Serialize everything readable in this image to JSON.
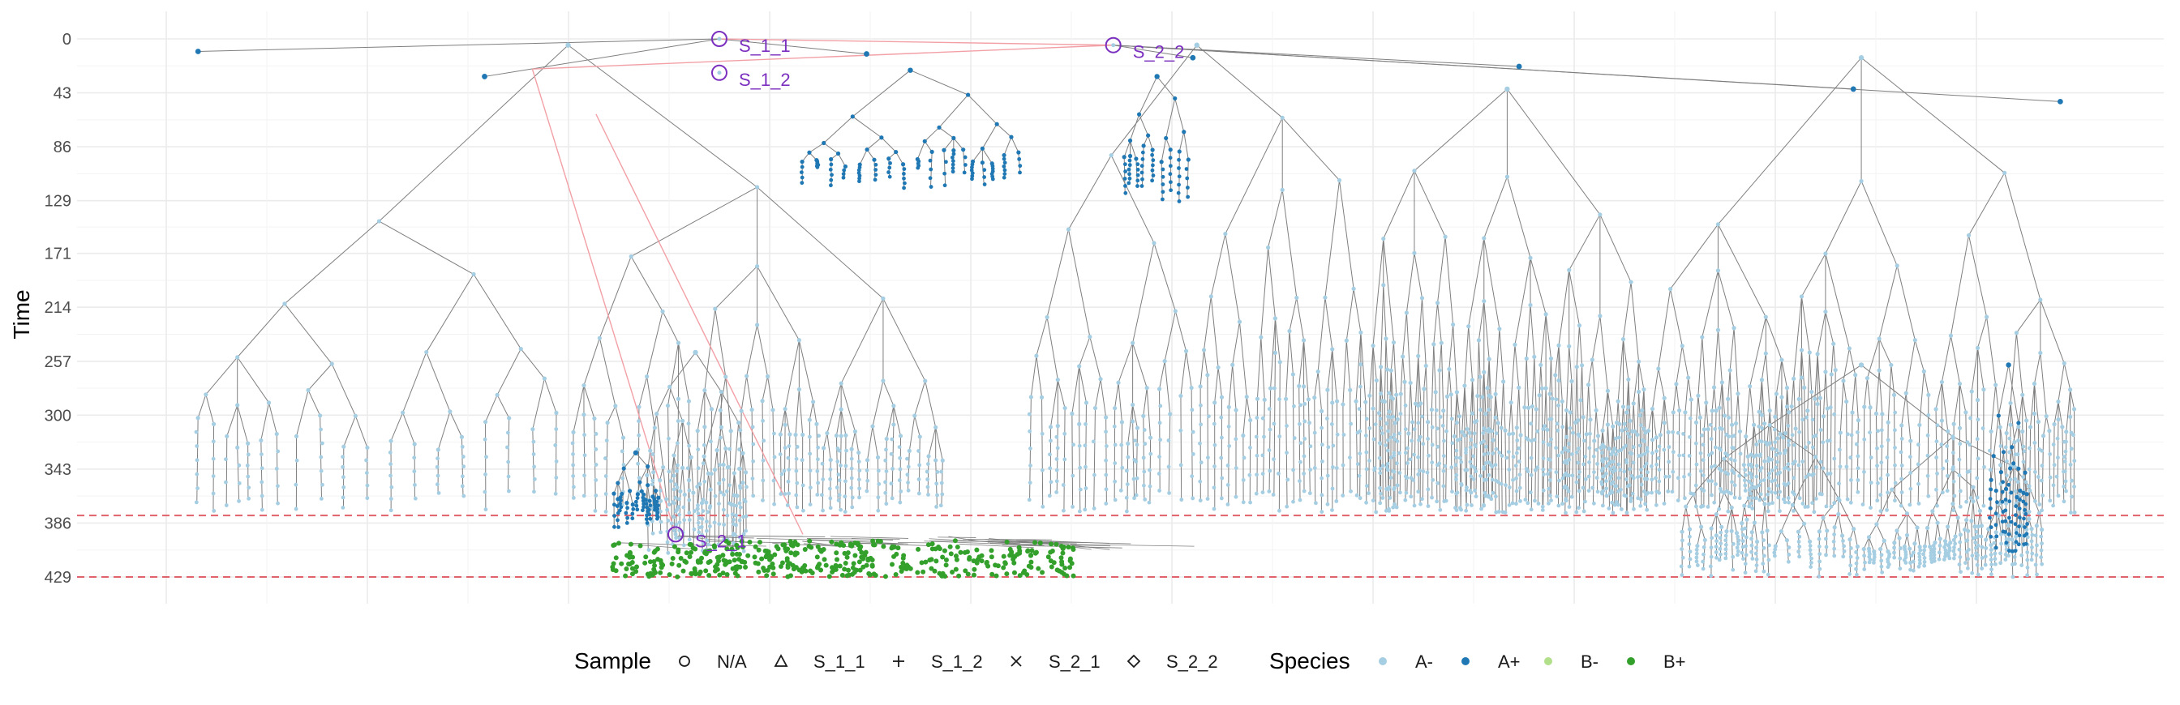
{
  "chart_data": {
    "type": "scatter",
    "subtype": "phylogenetic-tree",
    "title": "",
    "xlabel": "",
    "ylabel": "Time",
    "y_reversed": true,
    "ylim": [
      0,
      429
    ],
    "yticks": [
      0,
      43,
      86,
      129,
      171,
      214,
      257,
      300,
      343,
      386,
      429
    ],
    "xlim": [
      0,
      2400
    ],
    "x_tick_labels_shown": false,
    "grid": true,
    "legend_position": "bottom",
    "reference_lines": [
      {
        "axis": "y",
        "value": 380,
        "style": "dashed",
        "color": "#e0626a"
      },
      {
        "axis": "y",
        "value": 429,
        "style": "dashed",
        "color": "#e0626a"
      }
    ],
    "annotated_samples": [
      {
        "label": "S_1_1",
        "x": 695,
        "y": 0
      },
      {
        "label": "S_1_2",
        "x": 695,
        "y": 27
      },
      {
        "label": "S_2_2",
        "x": 1190,
        "y": 5
      },
      {
        "label": "S_2_1",
        "x": 640,
        "y": 395
      }
    ],
    "sample_links": [
      {
        "from": [
          695,
          0
        ],
        "to": [
          1190,
          5
        ]
      },
      {
        "from": [
          460,
          24
        ],
        "to": [
          1190,
          5
        ]
      },
      {
        "from": [
          460,
          24
        ],
        "to": [
          640,
          395
        ]
      },
      {
        "from": [
          540,
          60
        ],
        "to": [
          800,
          395
        ]
      }
    ],
    "clades": [
      {
        "x0": 30,
        "x1": 980,
        "root_y": 5,
        "tips_y": 378,
        "species": "A-",
        "depth": 4
      },
      {
        "x0": 790,
        "x1": 1080,
        "root_y": 25,
        "tips_y": 120,
        "species": "A+",
        "depth": 3
      },
      {
        "x0": 1080,
        "x1": 1510,
        "root_y": 5,
        "tips_y": 378,
        "species": "A-",
        "depth": 4
      },
      {
        "x0": 1200,
        "x1": 1290,
        "root_y": 30,
        "tips_y": 130,
        "species": "A+",
        "depth": 2
      },
      {
        "x0": 1510,
        "x1": 1860,
        "root_y": 40,
        "tips_y": 378,
        "species": "A-",
        "depth": 4
      },
      {
        "x0": 1860,
        "x1": 2400,
        "root_y": 15,
        "tips_y": 378,
        "species": "A-",
        "depth": 4
      },
      {
        "x0": 1900,
        "x1": 2360,
        "root_y": 260,
        "tips_y": 429,
        "species": "A-",
        "depth": 4
      },
      {
        "x0": 2290,
        "x1": 2340,
        "root_y": 260,
        "tips_y": 410,
        "species": "A+",
        "depth": 2
      },
      {
        "x0": 600,
        "x1": 730,
        "root_y": 250,
        "tips_y": 410,
        "species": "A-",
        "depth": 3
      },
      {
        "x0": 560,
        "x1": 620,
        "root_y": 330,
        "tips_y": 390,
        "species": "A+",
        "depth": 2
      }
    ],
    "b_plus_band": {
      "x0": 560,
      "x1": 1140,
      "y_top": 400,
      "y_bottom": 429,
      "species": "B+"
    },
    "legends": [
      {
        "title": "Sample",
        "entries": [
          {
            "label": "N/A",
            "shape": "circle-open"
          },
          {
            "label": "S_1_1",
            "shape": "triangle-open"
          },
          {
            "label": "S_1_2",
            "shape": "plus"
          },
          {
            "label": "S_2_1",
            "shape": "cross"
          },
          {
            "label": "S_2_2",
            "shape": "diamond-open"
          }
        ]
      },
      {
        "title": "Species",
        "entries": [
          {
            "label": "A-",
            "color": "#a6cee3"
          },
          {
            "label": "A+",
            "color": "#1f78b4"
          },
          {
            "label": "B-",
            "color": "#b2df8a"
          },
          {
            "label": "B+",
            "color": "#33a02c"
          }
        ]
      }
    ]
  },
  "colors": {
    "branch": "#7f7f7f",
    "link": "#f2a0a6",
    "annotation": "#7b2fbe",
    "reference": "#e0626a"
  }
}
